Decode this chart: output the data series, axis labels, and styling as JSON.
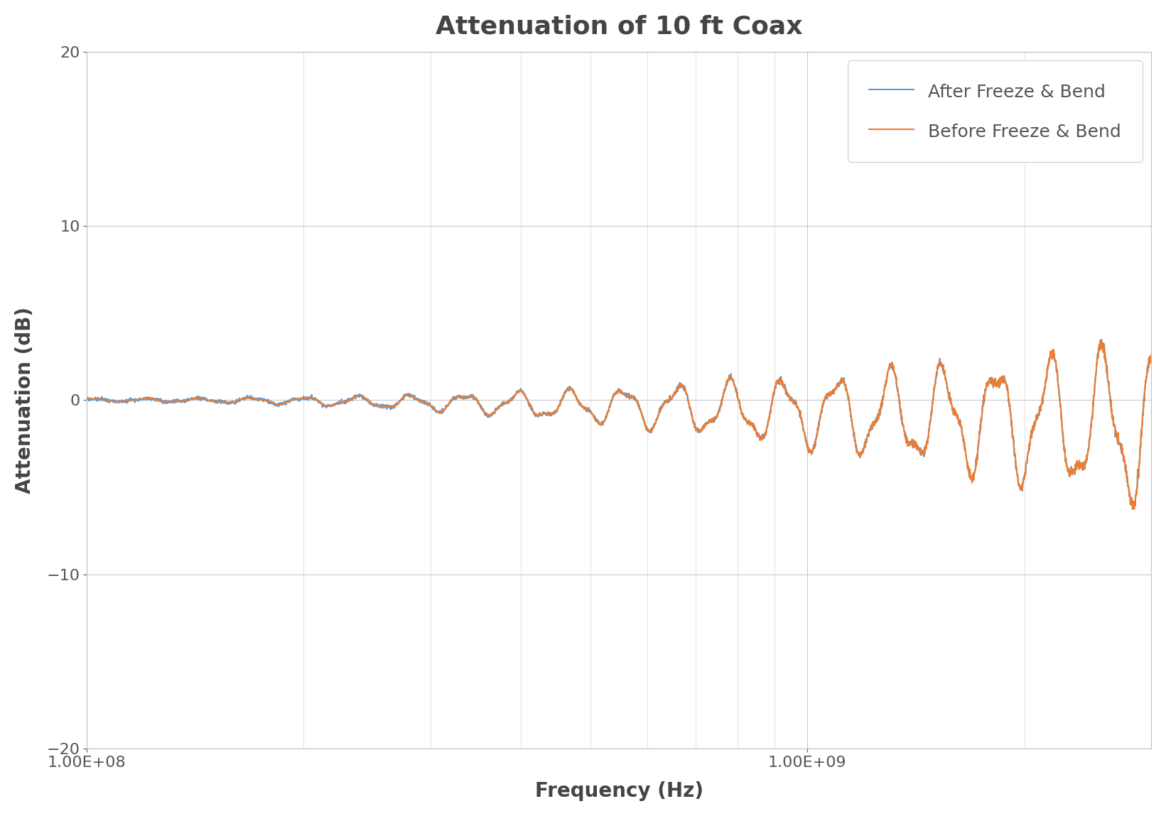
{
  "title": "Attenuation of 10 ft Coax",
  "xlabel": "Frequency (Hz)",
  "ylabel": "Attenuation (dB)",
  "ylim": [
    -20,
    20
  ],
  "yticks": [
    -20,
    -10,
    0,
    10,
    20
  ],
  "freq_min": 100000000.0,
  "freq_max": 3000000000.0,
  "title_fontsize": 26,
  "label_fontsize": 20,
  "tick_fontsize": 16,
  "legend_fontsize": 18,
  "line_color_after": "#5b9bd5",
  "line_color_before": "#ed7d31",
  "background_color": "#ffffff",
  "grid_color": "#c8c8c8"
}
